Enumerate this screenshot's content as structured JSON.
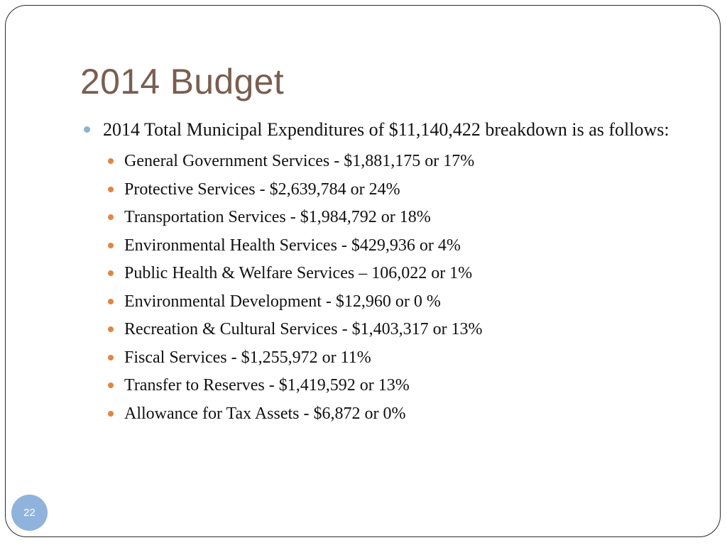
{
  "slide": {
    "title": "2014 Budget",
    "intro": "2014 Total Municipal Expenditures of $11,140,422 breakdown is as follows:",
    "items": [
      "General Government Services - $1,881,175 or 17%",
      "Protective Services - $2,639,784 or 24%",
      "Transportation Services - $1,984,792 or 18%",
      "Environmental Health Services - $429,936 or 4%",
      "Public Health & Welfare Services – 106,022 or 1%",
      "Environmental Development - $12,960 or 0 %",
      "Recreation & Cultural Services - $1,403,317 or 13%",
      "Fiscal Services - $1,255,972 or 11%",
      "Transfer to Reserves - $1,419,592 or 13%",
      "Allowance for Tax Assets - $6,872 or 0%"
    ],
    "page_number": "22"
  },
  "colors": {
    "title": "#7a5e50",
    "level1_bullet": "#8fb3cf",
    "level2_bullet": "#e48440",
    "page_badge": "#8fb3dd"
  }
}
